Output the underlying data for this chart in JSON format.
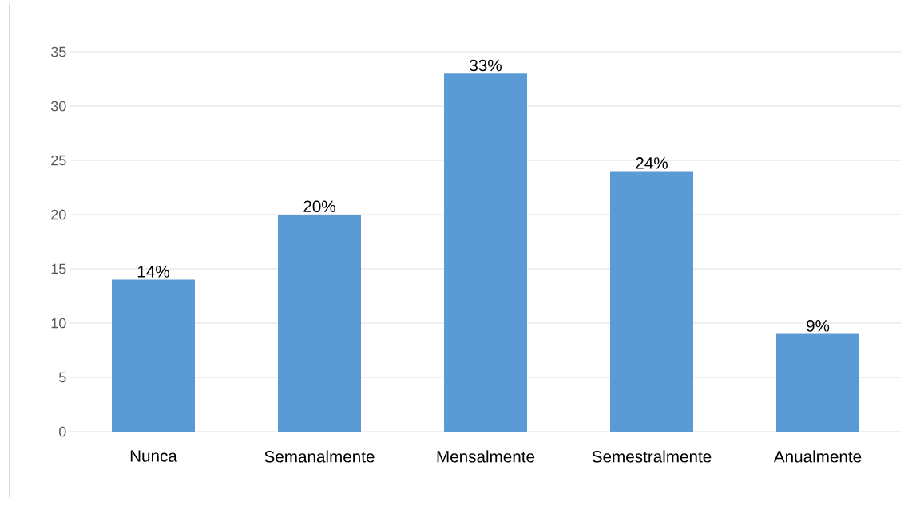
{
  "chart_data": {
    "type": "bar",
    "categories": [
      "Nunca",
      "Semanalmente",
      "Mensalmente",
      "Semestralmente",
      "Anualmente"
    ],
    "values": [
      14,
      20,
      33,
      24,
      9
    ],
    "value_labels": [
      "14%",
      "20%",
      "33%",
      "24%",
      "9%"
    ],
    "color": "#5b9bd5",
    "ylim": [
      0,
      35
    ],
    "yticks": [
      0,
      5,
      10,
      15,
      20,
      25,
      30,
      35
    ],
    "grid": "y"
  }
}
